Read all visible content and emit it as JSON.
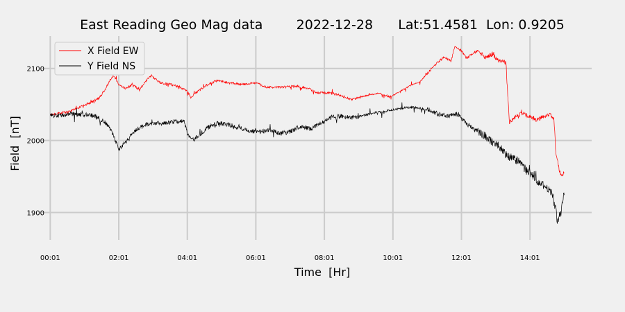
{
  "chart_data": {
    "type": "line",
    "title": "East Reading Geo Mag data        2022-12-28      Lat:51.4581  Lon: 0.9205",
    "xlabel": "Time  [Hr]",
    "ylabel": "Field  [nT]",
    "x_unit": "hours",
    "xlim": [
      -0.25,
      15.8
    ],
    "ylim": [
      1862,
      2145
    ],
    "x_ticks": [
      {
        "value": 0,
        "label": "00:01"
      },
      {
        "value": 2,
        "label": "02:01"
      },
      {
        "value": 4,
        "label": "04:01"
      },
      {
        "value": 6,
        "label": "06:01"
      },
      {
        "value": 8,
        "label": "08:01"
      },
      {
        "value": 10,
        "label": "10:01"
      },
      {
        "value": 12,
        "label": "12:01"
      },
      {
        "value": 14,
        "label": "14:01"
      }
    ],
    "y_ticks": [
      {
        "value": 1900,
        "label": "1900"
      },
      {
        "value": 2000,
        "label": "2000"
      },
      {
        "value": 2100,
        "label": "2100"
      }
    ],
    "grid": true,
    "legend_position": "top-left",
    "series": [
      {
        "name": "X Field EW",
        "color": "#ff0000",
        "points": [
          [
            0.0,
            2036
          ],
          [
            0.3,
            2038
          ],
          [
            0.6,
            2041
          ],
          [
            0.9,
            2047
          ],
          [
            1.2,
            2053
          ],
          [
            1.4,
            2058
          ],
          [
            1.6,
            2070
          ],
          [
            1.75,
            2085
          ],
          [
            1.85,
            2090
          ],
          [
            2.0,
            2078
          ],
          [
            2.2,
            2072
          ],
          [
            2.4,
            2078
          ],
          [
            2.6,
            2070
          ],
          [
            2.8,
            2083
          ],
          [
            2.95,
            2090
          ],
          [
            3.2,
            2080
          ],
          [
            3.5,
            2078
          ],
          [
            3.8,
            2074
          ],
          [
            4.0,
            2068
          ],
          [
            4.1,
            2060
          ],
          [
            4.3,
            2068
          ],
          [
            4.6,
            2078
          ],
          [
            4.9,
            2084
          ],
          [
            5.2,
            2080
          ],
          [
            5.6,
            2078
          ],
          [
            6.0,
            2080
          ],
          [
            6.3,
            2074
          ],
          [
            6.7,
            2074
          ],
          [
            7.1,
            2075
          ],
          [
            7.5,
            2073
          ],
          [
            7.8,
            2066
          ],
          [
            8.2,
            2066
          ],
          [
            8.5,
            2062
          ],
          [
            8.8,
            2057
          ],
          [
            9.2,
            2062
          ],
          [
            9.6,
            2066
          ],
          [
            9.9,
            2060
          ],
          [
            10.2,
            2068
          ],
          [
            10.5,
            2076
          ],
          [
            10.8,
            2082
          ],
          [
            11.0,
            2093
          ],
          [
            11.3,
            2108
          ],
          [
            11.5,
            2116
          ],
          [
            11.7,
            2110
          ],
          [
            11.8,
            2130
          ],
          [
            12.0,
            2125
          ],
          [
            12.15,
            2114
          ],
          [
            12.3,
            2120
          ],
          [
            12.5,
            2125
          ],
          [
            12.7,
            2115
          ],
          [
            12.9,
            2120
          ],
          [
            13.1,
            2110
          ],
          [
            13.3,
            2108
          ],
          [
            13.35,
            2062
          ],
          [
            13.4,
            2025
          ],
          [
            13.6,
            2034
          ],
          [
            13.8,
            2038
          ],
          [
            14.0,
            2032
          ],
          [
            14.2,
            2028
          ],
          [
            14.4,
            2034
          ],
          [
            14.6,
            2036
          ],
          [
            14.7,
            2030
          ],
          [
            14.75,
            1985
          ],
          [
            14.85,
            1960
          ],
          [
            14.9,
            1952
          ],
          [
            15.0,
            1955
          ]
        ]
      },
      {
        "name": "Y Field NS",
        "color": "#000000",
        "points": [
          [
            0.0,
            2035
          ],
          [
            0.3,
            2034
          ],
          [
            0.6,
            2037
          ],
          [
            0.9,
            2036
          ],
          [
            1.2,
            2035
          ],
          [
            1.4,
            2031
          ],
          [
            1.6,
            2025
          ],
          [
            1.8,
            2012
          ],
          [
            1.9,
            2000
          ],
          [
            2.0,
            1988
          ],
          [
            2.2,
            1997
          ],
          [
            2.4,
            2010
          ],
          [
            2.6,
            2018
          ],
          [
            2.8,
            2022
          ],
          [
            3.0,
            2024
          ],
          [
            3.3,
            2024
          ],
          [
            3.6,
            2026
          ],
          [
            3.9,
            2028
          ],
          [
            4.0,
            2010
          ],
          [
            4.15,
            2000
          ],
          [
            4.3,
            2006
          ],
          [
            4.6,
            2018
          ],
          [
            4.9,
            2024
          ],
          [
            5.2,
            2022
          ],
          [
            5.5,
            2018
          ],
          [
            5.8,
            2014
          ],
          [
            6.1,
            2012
          ],
          [
            6.4,
            2014
          ],
          [
            6.7,
            2010
          ],
          [
            7.0,
            2012
          ],
          [
            7.3,
            2020
          ],
          [
            7.6,
            2016
          ],
          [
            7.9,
            2024
          ],
          [
            8.2,
            2032
          ],
          [
            8.5,
            2034
          ],
          [
            8.8,
            2032
          ],
          [
            9.1,
            2034
          ],
          [
            9.4,
            2038
          ],
          [
            9.7,
            2040
          ],
          [
            10.0,
            2043
          ],
          [
            10.3,
            2045
          ],
          [
            10.6,
            2046
          ],
          [
            10.9,
            2044
          ],
          [
            11.1,
            2042
          ],
          [
            11.3,
            2037
          ],
          [
            11.6,
            2034
          ],
          [
            11.9,
            2037
          ],
          [
            12.1,
            2025
          ],
          [
            12.3,
            2018
          ],
          [
            12.5,
            2012
          ],
          [
            12.7,
            2006
          ],
          [
            12.9,
            1998
          ],
          [
            13.1,
            1992
          ],
          [
            13.3,
            1980
          ],
          [
            13.5,
            1975
          ],
          [
            13.7,
            1970
          ],
          [
            13.9,
            1958
          ],
          [
            14.1,
            1950
          ],
          [
            14.3,
            1940
          ],
          [
            14.5,
            1935
          ],
          [
            14.65,
            1925
          ],
          [
            14.75,
            1905
          ],
          [
            14.8,
            1888
          ],
          [
            14.9,
            1900
          ],
          [
            15.0,
            1928
          ]
        ]
      }
    ]
  }
}
